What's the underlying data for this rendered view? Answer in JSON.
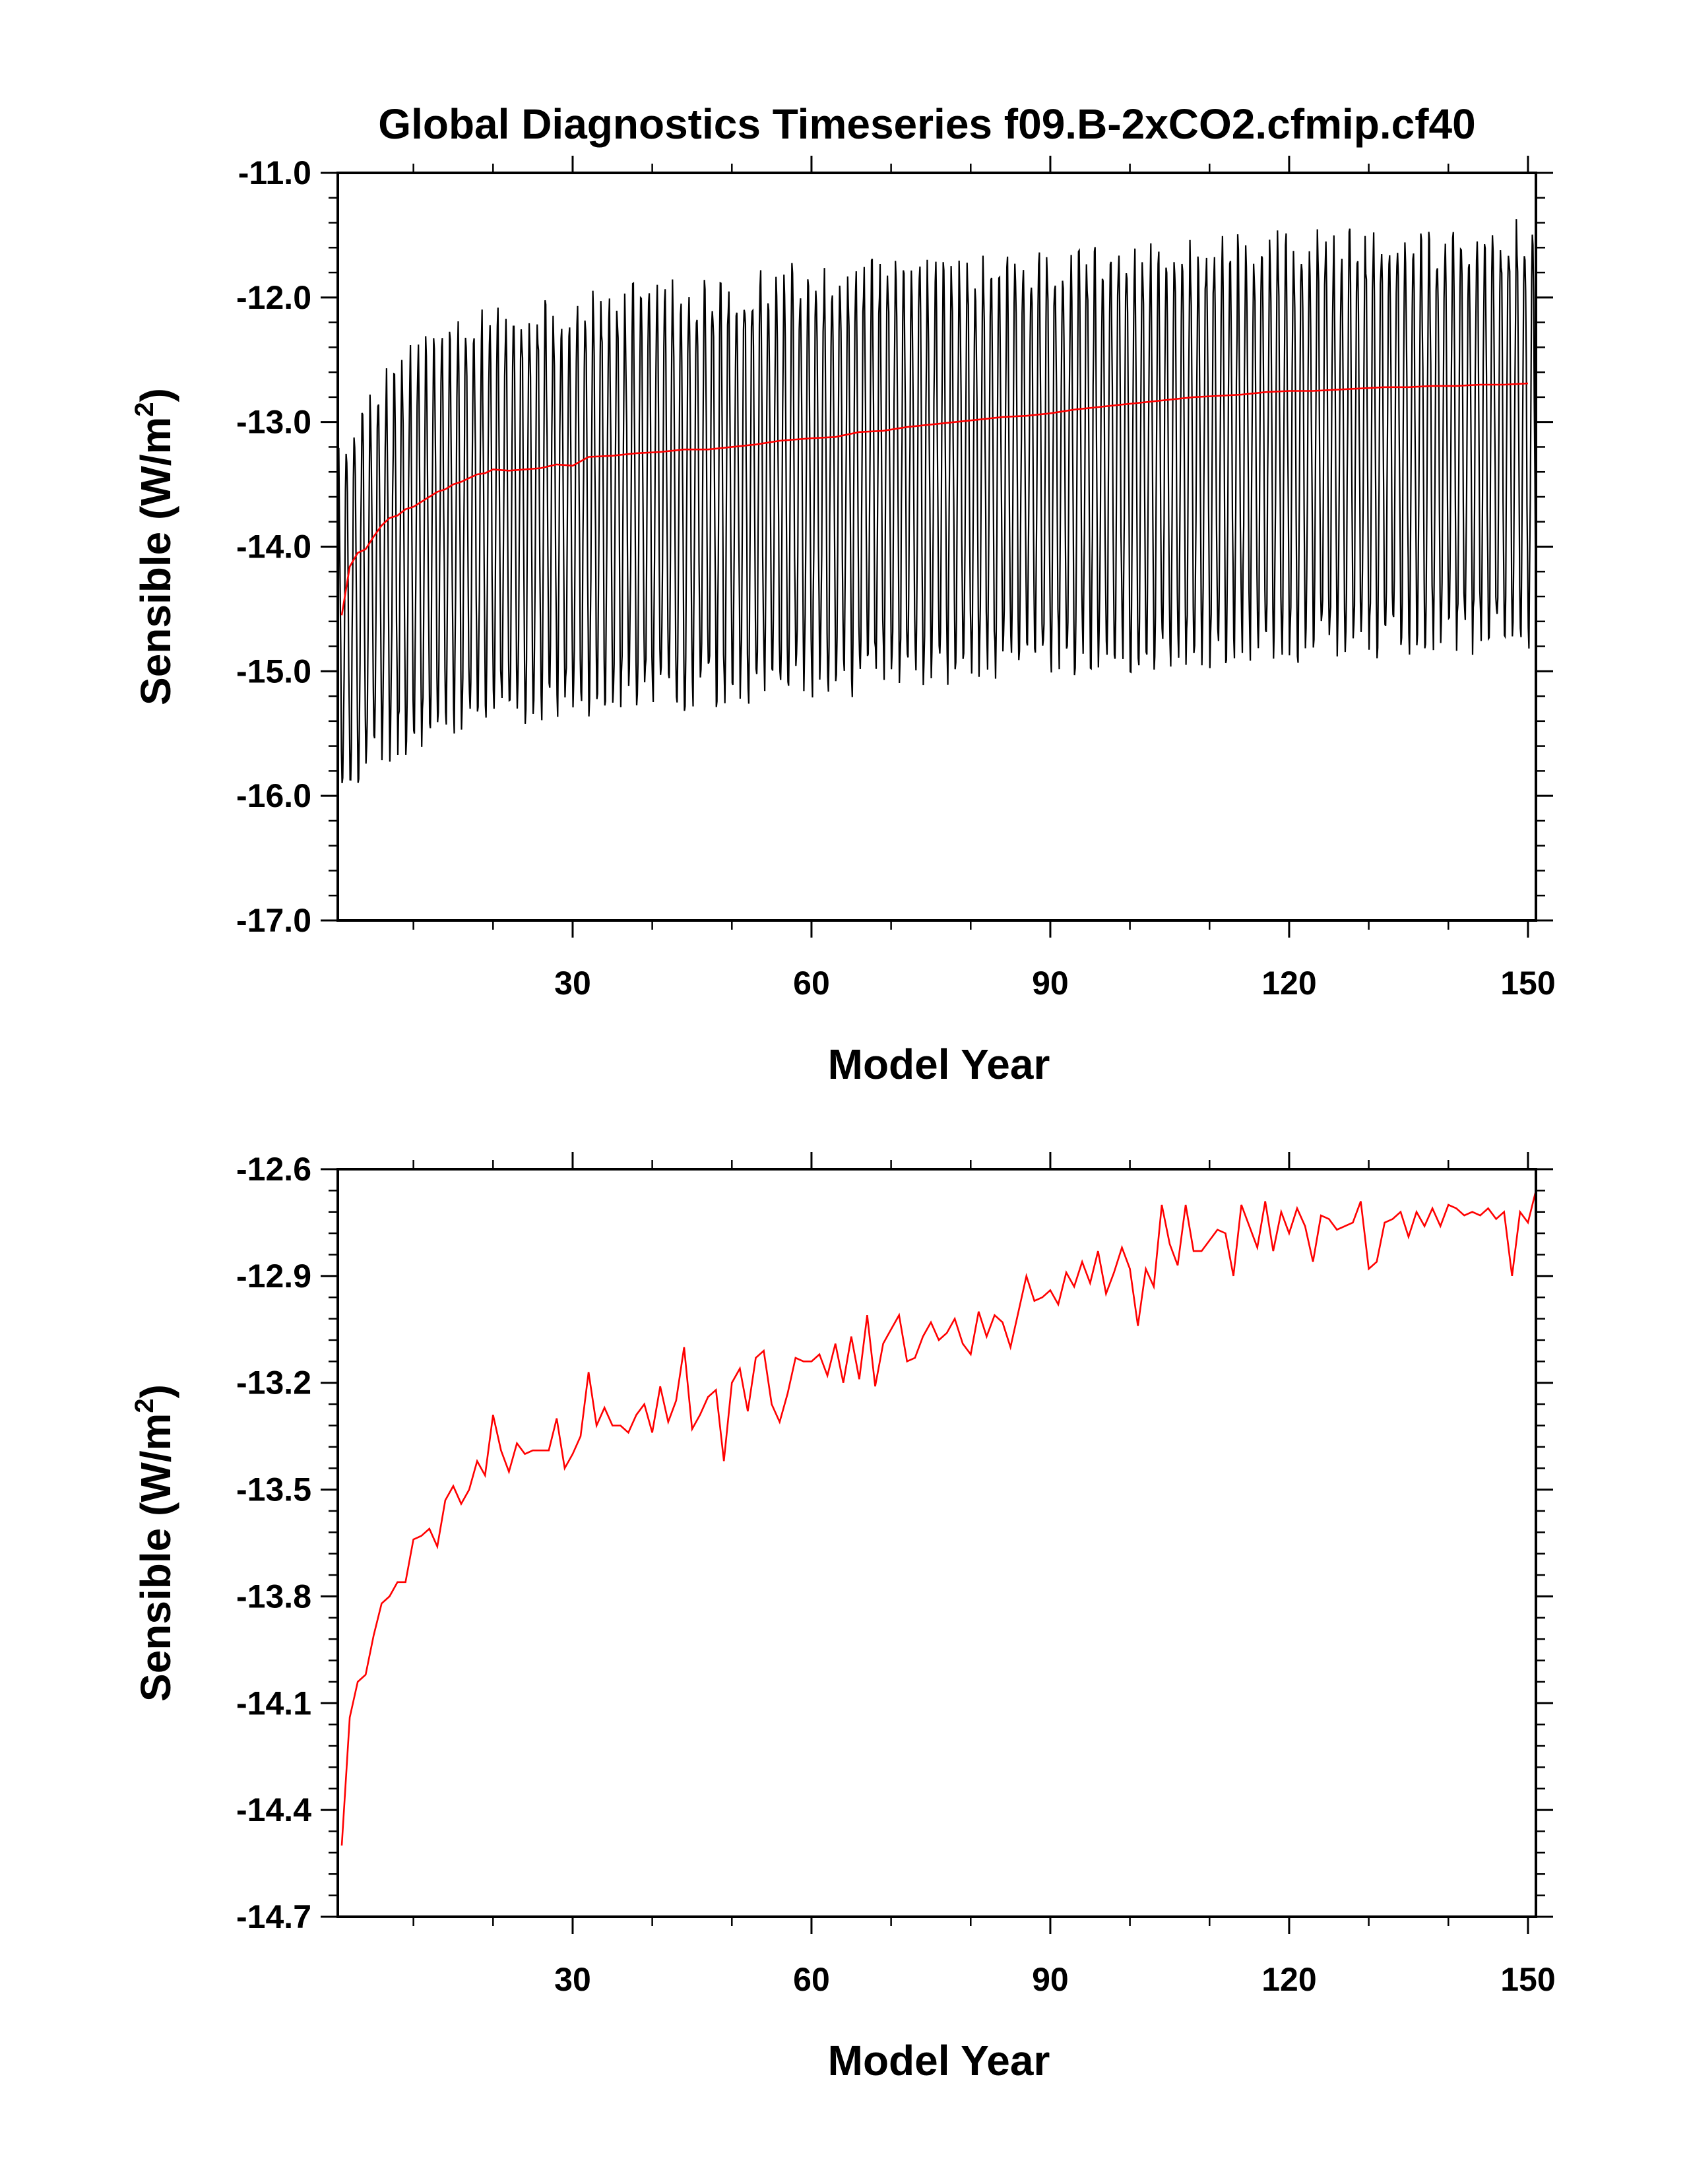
{
  "figure": {
    "title": "Global Diagnostics Timeseries f09.B-2xCO2.cfmip.cf40"
  },
  "chart_data": [
    {
      "type": "line",
      "title": "Global Diagnostics Timeseries f09.B-2xCO2.cfmip.cf40",
      "xlabel": "Model Year",
      "ylabel": "Sensible (W/m2)",
      "ylabel_parts": {
        "main": "Sensible (W/m",
        "sup": "2",
        "close": ")"
      },
      "xlim": [
        0.5,
        151
      ],
      "ylim": [
        -17.0,
        -11.0
      ],
      "xticks": [
        30,
        60,
        90,
        120,
        150
      ],
      "xtick_labels": [
        "30",
        "60",
        "90",
        "120",
        "150"
      ],
      "yticks": [
        -17.0,
        -16.0,
        -15.0,
        -14.0,
        -13.0,
        -12.0,
        -11.0
      ],
      "ytick_labels": [
        "-17.0",
        "-16.0",
        "-15.0",
        "-14.0",
        "-13.0",
        "-12.0",
        "-11.0"
      ],
      "grid": false,
      "legend": "none",
      "series": [
        {
          "kind": "monthly",
          "color": "#000000",
          "annual_cycle_envelope": {
            "years": [
              1,
              5,
              10,
              20,
              40,
              60,
              90,
              120,
              150
            ],
            "annual_max": [
              -13.3,
              -12.8,
              -12.5,
              -12.2,
              -12.0,
              -11.85,
              -11.75,
              -11.6,
              -11.5
            ],
            "annual_min": [
              -15.9,
              -15.7,
              -15.5,
              -15.3,
              -15.2,
              -15.1,
              -14.9,
              -14.8,
              -14.7
            ]
          }
        },
        {
          "kind": "annual_mean",
          "color": "#ff0000",
          "x": [
            1,
            2,
            3,
            4,
            5,
            6,
            7,
            8,
            9,
            10,
            11,
            12,
            13,
            14,
            15,
            16,
            17,
            18,
            19,
            20,
            22,
            24,
            26,
            28,
            30,
            32,
            35,
            38,
            41,
            44,
            47,
            50,
            53,
            56,
            60,
            63,
            66,
            69,
            72,
            75,
            78,
            81,
            84,
            87,
            90,
            93,
            96,
            99,
            102,
            105,
            108,
            111,
            114,
            117,
            120,
            123,
            126,
            129,
            132,
            135,
            138,
            141,
            144,
            147,
            150
          ],
          "y": [
            -14.55,
            -14.16,
            -14.05,
            -14.02,
            -13.92,
            -13.83,
            -13.77,
            -13.75,
            -13.7,
            -13.68,
            -13.64,
            -13.6,
            -13.56,
            -13.54,
            -13.5,
            -13.48,
            -13.45,
            -13.42,
            -13.41,
            -13.38,
            -13.39,
            -13.38,
            -13.37,
            -13.34,
            -13.35,
            -13.28,
            -13.27,
            -13.25,
            -13.24,
            -13.22,
            -13.22,
            -13.2,
            -13.18,
            -13.15,
            -13.13,
            -13.12,
            -13.08,
            -13.07,
            -13.04,
            -13.02,
            -13.0,
            -12.98,
            -12.96,
            -12.95,
            -12.93,
            -12.9,
            -12.88,
            -12.86,
            -12.84,
            -12.82,
            -12.8,
            -12.79,
            -12.78,
            -12.76,
            -12.75,
            -12.75,
            -12.74,
            -12.73,
            -12.72,
            -12.72,
            -12.71,
            -12.71,
            -12.7,
            -12.7,
            -12.69
          ]
        }
      ]
    },
    {
      "type": "line",
      "title": "",
      "xlabel": "Model Year",
      "ylabel": "Sensible (W/m2)",
      "ylabel_parts": {
        "main": "Sensible (W/m",
        "sup": "2",
        "close": ")"
      },
      "xlim": [
        0.5,
        151
      ],
      "ylim": [
        -14.7,
        -12.6
      ],
      "xticks": [
        30,
        60,
        90,
        120,
        150
      ],
      "xtick_labels": [
        "30",
        "60",
        "90",
        "120",
        "150"
      ],
      "yticks": [
        -14.7,
        -14.4,
        -14.1,
        -13.8,
        -13.5,
        -13.2,
        -12.9,
        -12.6
      ],
      "ytick_labels": [
        "-14.7",
        "-14.4",
        "-14.1",
        "-13.8",
        "-13.5",
        "-13.2",
        "-12.9",
        "-12.6"
      ],
      "grid": false,
      "legend": "none",
      "series": [
        {
          "kind": "annual_mean",
          "color": "#ff0000",
          "x": [
            1,
            2,
            3,
            4,
            5,
            6,
            7,
            8,
            9,
            10,
            11,
            12,
            13,
            14,
            15,
            16,
            17,
            18,
            19,
            20,
            21,
            22,
            23,
            24,
            25,
            26,
            27,
            28,
            29,
            30,
            31,
            32,
            33,
            34,
            35,
            36,
            37,
            38,
            39,
            40,
            41,
            42,
            43,
            44,
            45,
            46,
            47,
            48,
            49,
            50,
            51,
            52,
            53,
            54,
            55,
            56,
            57,
            58,
            59,
            60,
            61,
            62,
            63,
            64,
            65,
            66,
            67,
            68,
            69,
            70,
            71,
            72,
            73,
            74,
            75,
            76,
            77,
            78,
            79,
            80,
            81,
            82,
            83,
            84,
            85,
            86,
            87,
            88,
            89,
            90,
            91,
            92,
            93,
            94,
            95,
            96,
            97,
            98,
            99,
            100,
            101,
            102,
            103,
            104,
            105,
            106,
            107,
            108,
            109,
            110,
            111,
            112,
            113,
            114,
            115,
            116,
            117,
            118,
            119,
            120,
            121,
            122,
            123,
            124,
            125,
            126,
            127,
            128,
            129,
            130,
            131,
            132,
            133,
            134,
            135,
            136,
            137,
            138,
            139,
            140,
            141,
            142,
            143,
            144,
            145,
            146,
            147,
            148,
            149,
            150,
            151
          ],
          "y": [
            -14.5,
            -14.14,
            -14.04,
            -14.02,
            -13.91,
            -13.82,
            -13.8,
            -13.76,
            -13.76,
            -13.64,
            -13.63,
            -13.61,
            -13.66,
            -13.53,
            -13.49,
            -13.54,
            -13.5,
            -13.42,
            -13.46,
            -13.29,
            -13.39,
            -13.45,
            -13.37,
            -13.4,
            -13.39,
            -13.39,
            -13.39,
            -13.3,
            -13.44,
            -13.4,
            -13.35,
            -13.17,
            -13.32,
            -13.27,
            -13.32,
            -13.32,
            -13.34,
            -13.29,
            -13.26,
            -13.34,
            -13.21,
            -13.31,
            -13.25,
            -13.1,
            -13.33,
            -13.29,
            -13.24,
            -13.22,
            -13.42,
            -13.2,
            -13.16,
            -13.28,
            -13.13,
            -13.11,
            -13.26,
            -13.31,
            -13.23,
            -13.13,
            -13.14,
            -13.14,
            -13.12,
            -13.18,
            -13.09,
            -13.2,
            -13.07,
            -13.19,
            -13.01,
            -13.21,
            -13.09,
            -13.05,
            -13.01,
            -13.14,
            -13.13,
            -13.07,
            -13.03,
            -13.08,
            -13.06,
            -13.02,
            -13.09,
            -13.12,
            -13.0,
            -13.07,
            -13.01,
            -13.03,
            -13.1,
            -13.0,
            -12.9,
            -12.97,
            -12.96,
            -12.94,
            -12.98,
            -12.89,
            -12.93,
            -12.86,
            -12.92,
            -12.83,
            -12.95,
            -12.89,
            -12.82,
            -12.88,
            -13.04,
            -12.88,
            -12.93,
            -12.7,
            -12.81,
            -12.87,
            -12.7,
            -12.83,
            -12.83,
            -12.8,
            -12.77,
            -12.78,
            -12.9,
            -12.7,
            -12.76,
            -12.82,
            -12.69,
            -12.83,
            -12.72,
            -12.78,
            -12.71,
            -12.76,
            -12.86,
            -12.73,
            -12.74,
            -12.77,
            -12.76,
            -12.75,
            -12.69,
            -12.88,
            -12.86,
            -12.75,
            -12.74,
            -12.72,
            -12.79,
            -12.72,
            -12.76,
            -12.71,
            -12.76,
            -12.7,
            -12.71,
            -12.73,
            -12.72,
            -12.73,
            -12.71,
            -12.74,
            -12.72,
            -12.9,
            -12.72,
            -12.75,
            -12.66
          ]
        }
      ]
    }
  ]
}
